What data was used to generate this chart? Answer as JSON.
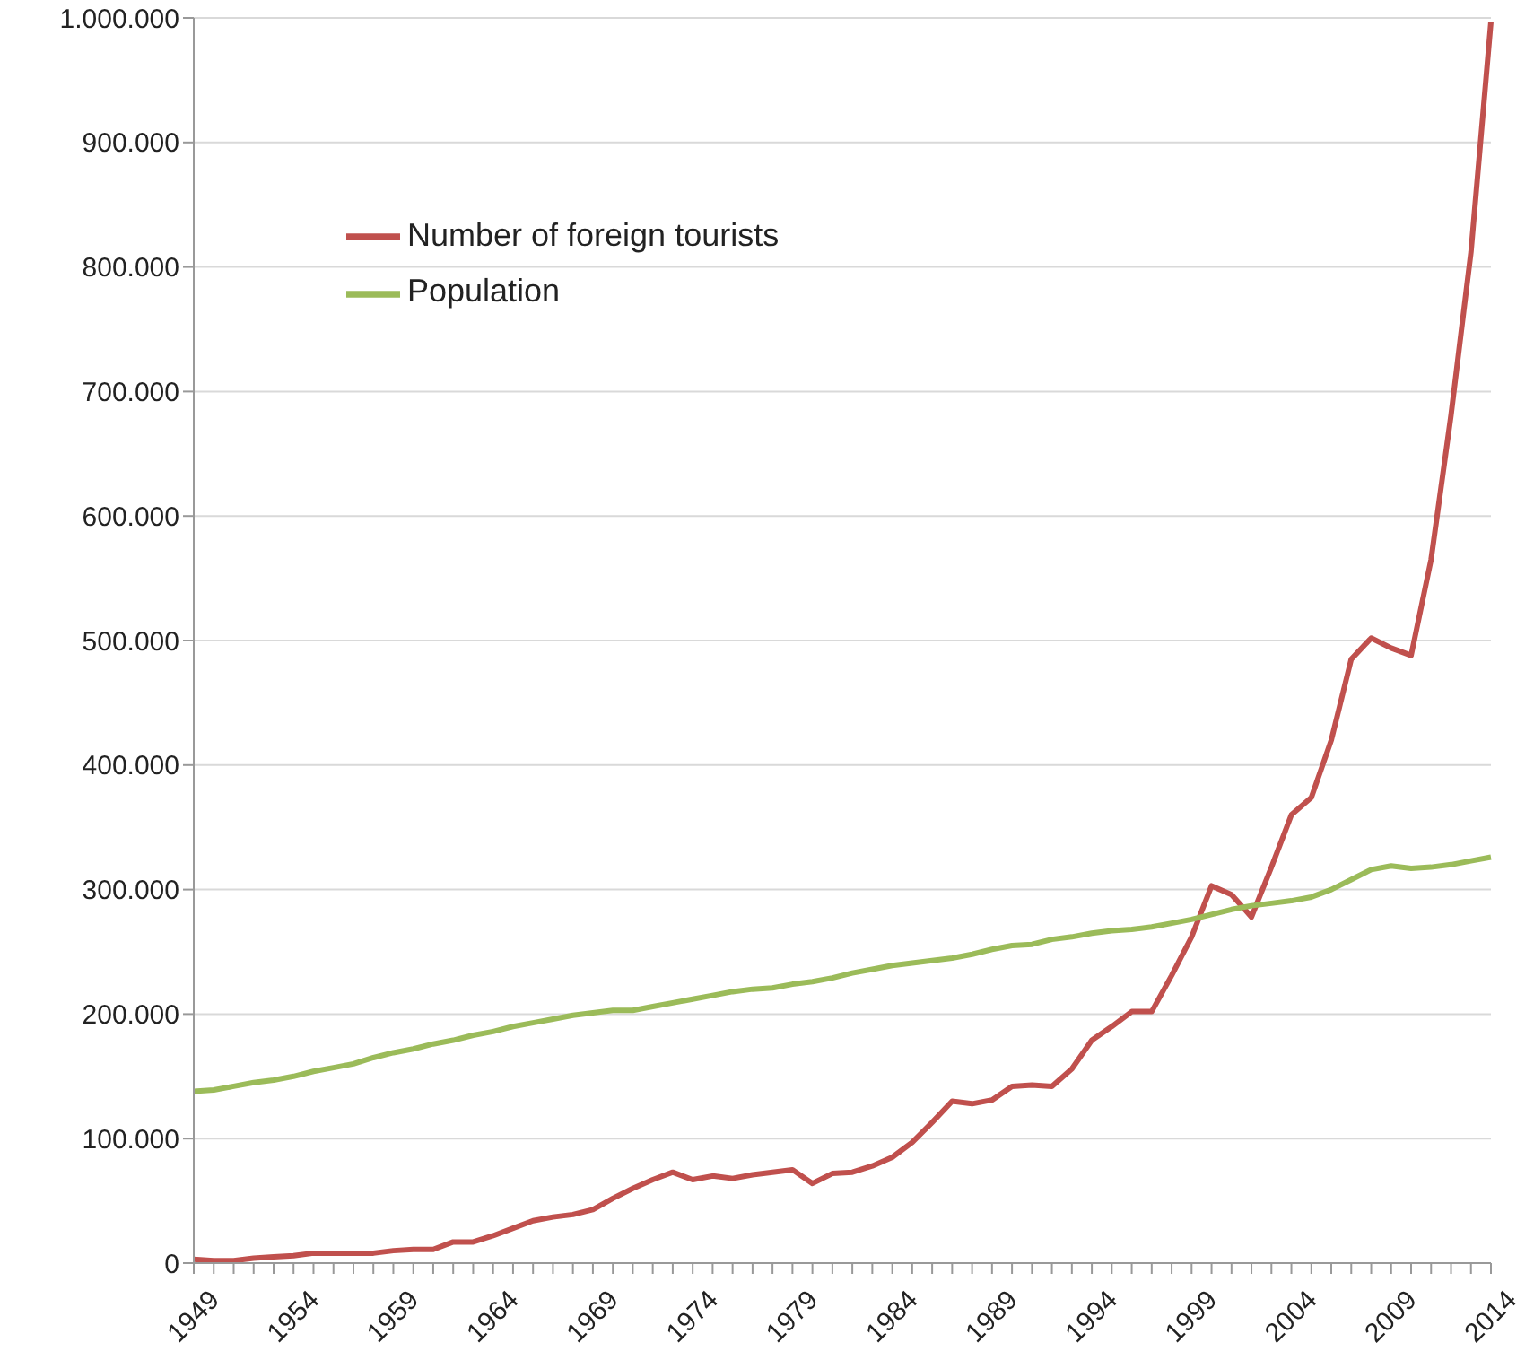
{
  "chart_data": {
    "type": "line",
    "categories": [
      "1949",
      null,
      null,
      null,
      null,
      "1954",
      null,
      null,
      null,
      null,
      "1959",
      null,
      null,
      null,
      null,
      "1964",
      null,
      null,
      null,
      null,
      "1969",
      null,
      null,
      null,
      null,
      "1974",
      null,
      null,
      null,
      null,
      "1979",
      null,
      null,
      null,
      null,
      "1984",
      null,
      null,
      null,
      null,
      "1989",
      null,
      null,
      null,
      null,
      "1994",
      null,
      null,
      null,
      null,
      "1999",
      null,
      null,
      null,
      null,
      "2004",
      null,
      null,
      null,
      null,
      "2009",
      null,
      null,
      null,
      null,
      "2014"
    ],
    "series": [
      {
        "name": "Number of foreign tourists",
        "color": "#c0504d",
        "values": [
          3000,
          2000,
          2000,
          4000,
          5000,
          6000,
          8000,
          8000,
          8000,
          8000,
          10000,
          11000,
          11000,
          17000,
          17000,
          22000,
          28000,
          34000,
          37000,
          39000,
          43000,
          52000,
          60000,
          67000,
          73000,
          67000,
          70000,
          68000,
          71000,
          73000,
          75000,
          64000,
          72000,
          73000,
          78000,
          85000,
          97000,
          113000,
          130000,
          128000,
          131000,
          142000,
          143000,
          142000,
          156000,
          179000,
          190000,
          202000,
          202000,
          231000,
          262000,
          303000,
          296000,
          278000,
          318000,
          360000,
          374000,
          420000,
          485000,
          502000,
          494000,
          488000,
          565000,
          681000,
          812000,
          997000
        ]
      },
      {
        "name": "Population",
        "color": "#9bbb59",
        "values": [
          138000,
          139000,
          142000,
          145000,
          147000,
          150000,
          154000,
          157000,
          160000,
          165000,
          169000,
          172000,
          176000,
          179000,
          183000,
          186000,
          190000,
          193000,
          196000,
          199000,
          201000,
          203000,
          203000,
          206000,
          209000,
          212000,
          215000,
          218000,
          220000,
          221000,
          224000,
          226000,
          229000,
          233000,
          236000,
          239000,
          241000,
          243000,
          245000,
          248000,
          252000,
          255000,
          256000,
          260000,
          262000,
          265000,
          267000,
          268000,
          270000,
          273000,
          276000,
          280000,
          284000,
          287000,
          289000,
          291000,
          294000,
          300000,
          308000,
          316000,
          319000,
          317000,
          318000,
          320000,
          323000,
          326000
        ]
      }
    ],
    "ylim": [
      0,
      1000000
    ],
    "yticks": [
      0,
      {
        "value": 100000,
        "label": "100.000"
      },
      {
        "value": 200000,
        "label": "200.000"
      },
      {
        "value": 300000,
        "label": "300.000"
      },
      {
        "value": 400000,
        "label": "400.000"
      },
      {
        "value": 500000,
        "label": "500.000"
      },
      {
        "value": 600000,
        "label": "600.000"
      },
      {
        "value": 700000,
        "label": "700.000"
      },
      {
        "value": 800000,
        "label": "800.000"
      },
      {
        "value": 900000,
        "label": "900.000"
      },
      {
        "value": 1000000,
        "label": "1.000.000"
      }
    ],
    "grid": "y",
    "legend": "top left",
    "marker": "none",
    "line_style": "solid"
  }
}
